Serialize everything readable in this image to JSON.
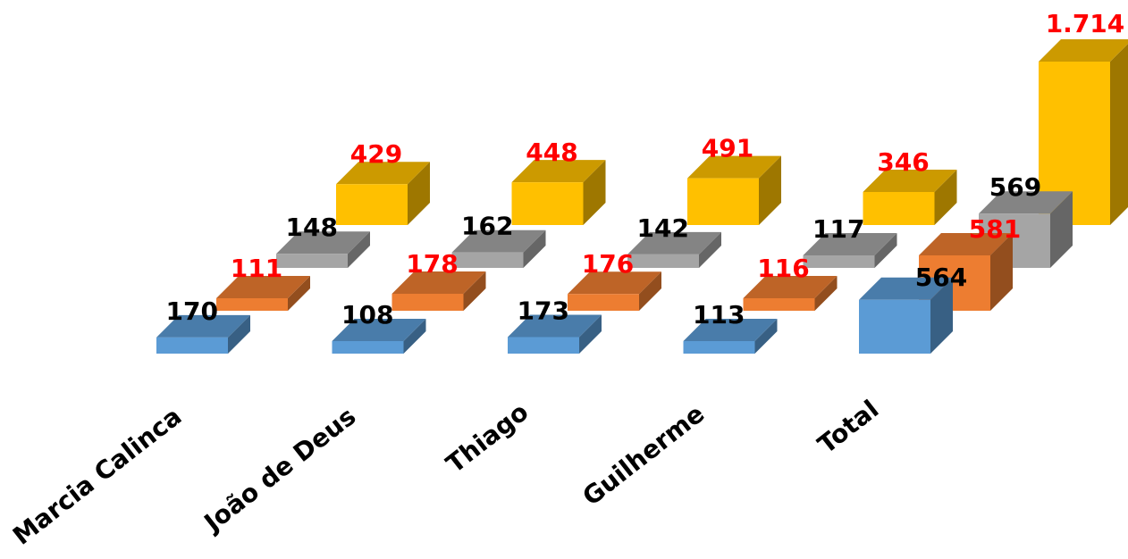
{
  "chart_data": {
    "type": "bar",
    "subtype": "3d-column-multirow",
    "categories": [
      "Marcia Calinca",
      "João de Deus",
      "Thiago",
      "Guilherme",
      "Total"
    ],
    "series": [
      {
        "values": [
          170,
          108,
          173,
          113,
          564
        ],
        "labels": [
          "170",
          "108",
          "173",
          "113",
          "564"
        ],
        "color": "#5b9bd5",
        "label_color": "#000000"
      },
      {
        "values": [
          111,
          178,
          176,
          116,
          581
        ],
        "labels": [
          "111",
          "178",
          "176",
          "116",
          "581"
        ],
        "color": "#ed7d31",
        "label_color": "#ff0000"
      },
      {
        "values": [
          148,
          162,
          142,
          117,
          569
        ],
        "labels": [
          "148",
          "162",
          "142",
          "117",
          "569"
        ],
        "color": "#a5a5a5",
        "label_color": "#000000"
      },
      {
        "values": [
          429,
          448,
          491,
          346,
          1714
        ],
        "labels": [
          "429",
          "448",
          "491",
          "346",
          "1.714"
        ],
        "color": "#ffc000",
        "label_color": "#ff0000"
      }
    ],
    "title": "",
    "xlabel": "",
    "ylabel": "",
    "legend": "none",
    "grid": false
  }
}
